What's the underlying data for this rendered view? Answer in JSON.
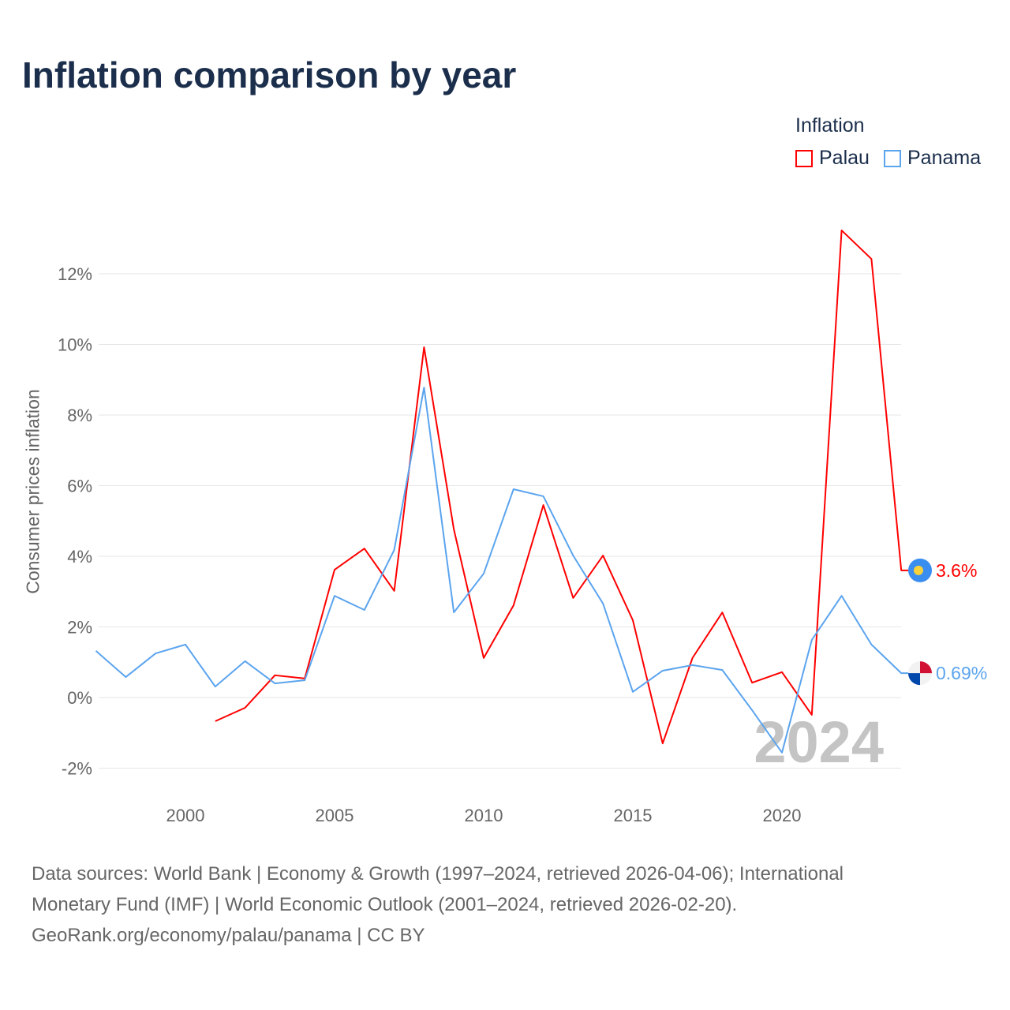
{
  "title": "Inflation comparison by year",
  "legend": {
    "title": "Inflation",
    "items": [
      {
        "name": "Palau",
        "color": "#ff0000"
      },
      {
        "name": "Panama",
        "color": "#5ba4ee"
      }
    ]
  },
  "source": {
    "line1": "Data sources: World Bank | Economy & Growth (1997–2024, retrieved 2026-04-06); International",
    "line2": "Monetary Fund (IMF) | World Economic Outlook (2001–2024, retrieved 2026-02-20).",
    "line3": "GeoRank.org/economy/palau/panama | CC BY"
  },
  "chart_data": {
    "type": "line",
    "title": "Inflation comparison by year",
    "xlabel": "",
    "ylabel": "Consumer prices inflation",
    "xlim": [
      1997,
      2024
    ],
    "ylim": [
      -2.5,
      13.5
    ],
    "x_ticks": [
      2000,
      2005,
      2010,
      2015,
      2020
    ],
    "y_ticks": [
      -2,
      0,
      2,
      4,
      6,
      8,
      10,
      12
    ],
    "y_tick_labels": [
      "-2%",
      "0%",
      "2%",
      "4%",
      "6%",
      "8%",
      "10%",
      "12%"
    ],
    "grid": true,
    "watermark_year": "2024",
    "series": [
      {
        "name": "Palau",
        "color": "#ff0000",
        "end_label": "3.6%",
        "start_year": 2001,
        "values": [
          -0.67,
          -0.29,
          0.63,
          0.54,
          3.62,
          4.22,
          3.02,
          9.92,
          4.76,
          1.12,
          2.61,
          5.45,
          2.82,
          4.02,
          2.19,
          -1.3,
          1.12,
          2.41,
          0.42,
          0.72,
          -0.49,
          13.23,
          12.42,
          3.6
        ]
      },
      {
        "name": "Panama",
        "color": "#5ba4ee",
        "end_label": "0.69%",
        "start_year": 1997,
        "values": [
          1.32,
          0.58,
          1.25,
          1.5,
          0.31,
          1.03,
          0.4,
          0.49,
          2.88,
          2.48,
          4.18,
          8.78,
          2.41,
          3.51,
          5.9,
          5.7,
          4.02,
          2.66,
          0.16,
          0.76,
          0.92,
          0.78,
          -0.36,
          -1.56,
          1.63,
          2.88,
          1.5,
          0.69
        ]
      }
    ]
  }
}
